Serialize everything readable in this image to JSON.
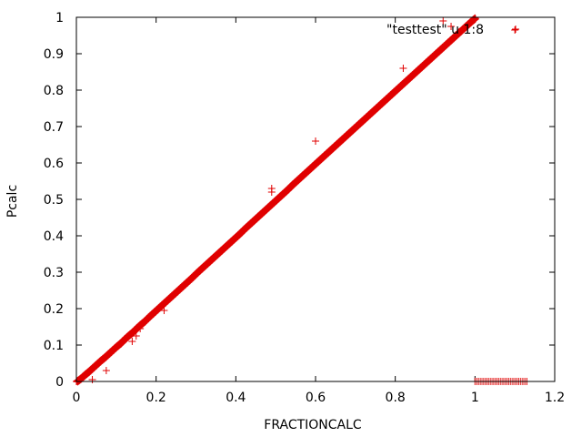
{
  "chart_data": {
    "type": "scatter",
    "title": "",
    "xlabel": "FRACTIONCALC",
    "ylabel": "Pcalc",
    "xlim": [
      0,
      1.2
    ],
    "ylim": [
      0,
      1
    ],
    "xticks": [
      "0",
      "0.2",
      "0.4",
      "0.6",
      "0.8",
      "1",
      "1.2"
    ],
    "yticks": [
      "0",
      "0.1",
      "0.2",
      "0.3",
      "0.4",
      "0.5",
      "0.6",
      "0.7",
      "0.8",
      "0.9",
      "1"
    ],
    "grid": false,
    "legend": "top-right",
    "marker": "plus",
    "color": "#e00000",
    "series": [
      {
        "name": "\"testtest\" u 1:8",
        "trend_points": [
          [
            0.0,
            0.0
          ],
          [
            0.01,
            0.008
          ],
          [
            0.02,
            0.018
          ],
          [
            0.03,
            0.027
          ],
          [
            0.04,
            0.037
          ],
          [
            0.05,
            0.047
          ],
          [
            0.06,
            0.057
          ],
          [
            0.07,
            0.066
          ],
          [
            0.08,
            0.076
          ],
          [
            0.09,
            0.086
          ],
          [
            0.1,
            0.096
          ],
          [
            0.11,
            0.105
          ],
          [
            0.12,
            0.116
          ],
          [
            0.13,
            0.126
          ],
          [
            0.14,
            0.135
          ],
          [
            0.15,
            0.146
          ],
          [
            0.16,
            0.156
          ],
          [
            0.17,
            0.165
          ],
          [
            0.18,
            0.176
          ],
          [
            0.19,
            0.186
          ],
          [
            0.2,
            0.196
          ],
          [
            0.21,
            0.206
          ],
          [
            0.22,
            0.216
          ],
          [
            0.23,
            0.226
          ],
          [
            0.24,
            0.236
          ],
          [
            0.25,
            0.246
          ],
          [
            0.26,
            0.256
          ],
          [
            0.27,
            0.266
          ],
          [
            0.28,
            0.276
          ],
          [
            0.29,
            0.286
          ],
          [
            0.3,
            0.297
          ],
          [
            0.31,
            0.307
          ],
          [
            0.32,
            0.317
          ],
          [
            0.33,
            0.327
          ],
          [
            0.34,
            0.337
          ],
          [
            0.35,
            0.347
          ],
          [
            0.36,
            0.357
          ],
          [
            0.37,
            0.367
          ],
          [
            0.38,
            0.377
          ],
          [
            0.39,
            0.387
          ],
          [
            0.4,
            0.397
          ],
          [
            0.41,
            0.407
          ],
          [
            0.42,
            0.418
          ],
          [
            0.43,
            0.428
          ],
          [
            0.44,
            0.438
          ],
          [
            0.45,
            0.448
          ],
          [
            0.46,
            0.458
          ],
          [
            0.47,
            0.468
          ],
          [
            0.48,
            0.478
          ],
          [
            0.49,
            0.488
          ],
          [
            0.5,
            0.498
          ],
          [
            0.51,
            0.508
          ],
          [
            0.52,
            0.518
          ],
          [
            0.53,
            0.528
          ],
          [
            0.54,
            0.539
          ],
          [
            0.55,
            0.549
          ],
          [
            0.56,
            0.559
          ],
          [
            0.57,
            0.569
          ],
          [
            0.58,
            0.579
          ],
          [
            0.59,
            0.589
          ],
          [
            0.6,
            0.599
          ],
          [
            0.61,
            0.609
          ],
          [
            0.62,
            0.619
          ],
          [
            0.63,
            0.629
          ],
          [
            0.64,
            0.639
          ],
          [
            0.65,
            0.649
          ],
          [
            0.66,
            0.659
          ],
          [
            0.67,
            0.669
          ],
          [
            0.68,
            0.679
          ],
          [
            0.69,
            0.689
          ],
          [
            0.7,
            0.699
          ],
          [
            0.71,
            0.709
          ],
          [
            0.72,
            0.719
          ],
          [
            0.73,
            0.729
          ],
          [
            0.74,
            0.739
          ],
          [
            0.75,
            0.749
          ],
          [
            0.76,
            0.759
          ],
          [
            0.77,
            0.769
          ],
          [
            0.78,
            0.779
          ],
          [
            0.79,
            0.789
          ],
          [
            0.8,
            0.799
          ],
          [
            0.81,
            0.809
          ],
          [
            0.82,
            0.819
          ],
          [
            0.83,
            0.829
          ],
          [
            0.84,
            0.839
          ],
          [
            0.85,
            0.849
          ],
          [
            0.86,
            0.859
          ],
          [
            0.87,
            0.869
          ],
          [
            0.88,
            0.879
          ],
          [
            0.89,
            0.889
          ],
          [
            0.9,
            0.899
          ],
          [
            0.91,
            0.909
          ],
          [
            0.92,
            0.919
          ],
          [
            0.93,
            0.929
          ],
          [
            0.94,
            0.939
          ],
          [
            0.95,
            0.949
          ],
          [
            0.96,
            0.959
          ],
          [
            0.97,
            0.969
          ],
          [
            0.98,
            0.979
          ],
          [
            0.99,
            0.989
          ],
          [
            1.0,
            0.998
          ]
        ],
        "outliers": [
          [
            0.04,
            0.005
          ],
          [
            0.075,
            0.03
          ],
          [
            0.14,
            0.11
          ],
          [
            0.15,
            0.125
          ],
          [
            0.16,
            0.145
          ],
          [
            0.22,
            0.195
          ],
          [
            0.49,
            0.53
          ],
          [
            0.49,
            0.52
          ],
          [
            0.6,
            0.66
          ],
          [
            0.82,
            0.86
          ],
          [
            0.92,
            0.99
          ],
          [
            0.94,
            0.975
          ],
          [
            0.96,
            0.96
          ],
          [
            1.1,
            0.965
          ]
        ],
        "x_equals_zero_segment": {
          "x_from": 1.0,
          "x_to": 1.13,
          "y": 0,
          "step": 0.005
        }
      }
    ]
  }
}
